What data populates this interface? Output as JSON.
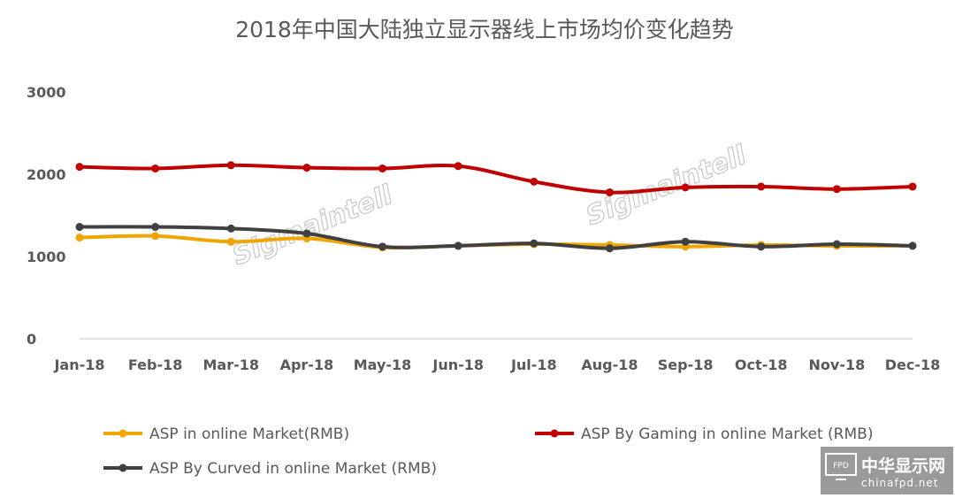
{
  "chart_data": {
    "type": "line",
    "title": "2018年中国大陆独立显示器线上市场均价变化趋势",
    "categories": [
      "Jan-18",
      "Feb-18",
      "Mar-18",
      "Apr-18",
      "May-18",
      "Jun-18",
      "Jul-18",
      "Aug-18",
      "Sep-18",
      "Oct-18",
      "Nov-18",
      "Dec-18"
    ],
    "ylim": [
      0,
      3000
    ],
    "yticks": [
      0,
      1000,
      2000,
      3000
    ],
    "grid": false,
    "legend_position": "bottom",
    "series": [
      {
        "name": "ASP in online Market(RMB)",
        "color": "#f0a500",
        "values": [
          1230,
          1250,
          1180,
          1220,
          1110,
          1130,
          1150,
          1140,
          1120,
          1140,
          1130,
          1130
        ]
      },
      {
        "name": "ASP By Gaming in online Market (RMB)",
        "color": "#c00000",
        "values": [
          2090,
          2070,
          2110,
          2080,
          2070,
          2100,
          1910,
          1780,
          1840,
          1850,
          1820,
          1850
        ]
      },
      {
        "name": "ASP By Curved in online Market (RMB)",
        "color": "#404040",
        "values": [
          1360,
          1360,
          1340,
          1280,
          1120,
          1130,
          1160,
          1100,
          1180,
          1120,
          1150,
          1130
        ]
      }
    ]
  },
  "watermark": "Sigmaintell",
  "logo": {
    "main": "中华显示网",
    "sub": "chinafpd.net",
    "badge": "FPD"
  }
}
